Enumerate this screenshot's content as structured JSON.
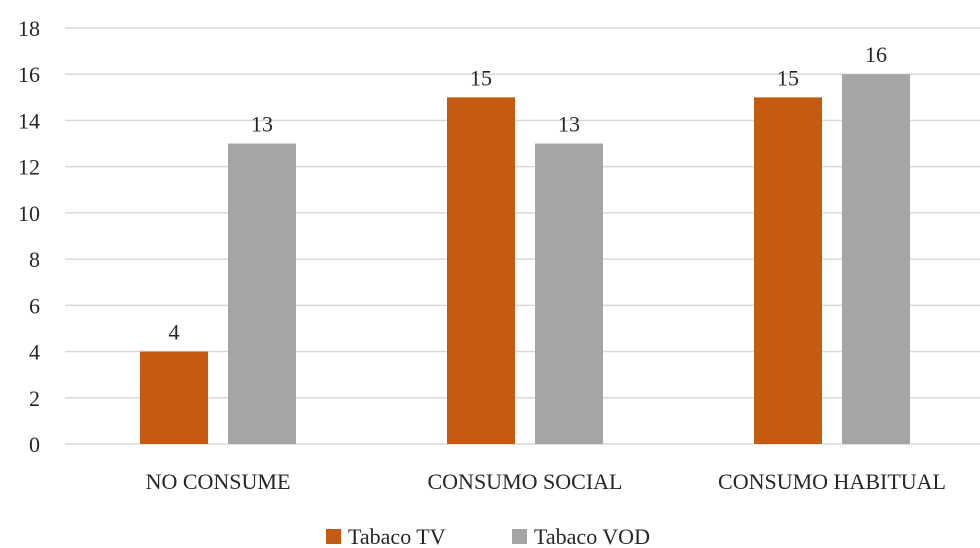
{
  "chart_data": {
    "type": "bar",
    "categories": [
      "NO CONSUME",
      "CONSUMO SOCIAL",
      "CONSUMO HABITUAL"
    ],
    "series": [
      {
        "name": "Tabaco TV",
        "values": [
          4,
          15,
          15
        ],
        "color": "#c55a11"
      },
      {
        "name": "Tabaco VOD",
        "values": [
          13,
          13,
          16
        ],
        "color": "#a5a5a5"
      }
    ],
    "yticks": [
      "0",
      "2",
      "4",
      "6",
      "8",
      "10",
      "12",
      "14",
      "16",
      "18"
    ],
    "ylim": [
      0,
      18
    ],
    "title": "",
    "xlabel": "",
    "ylabel": "",
    "grid": true,
    "data_labels": true,
    "legend_position": "bottom"
  }
}
